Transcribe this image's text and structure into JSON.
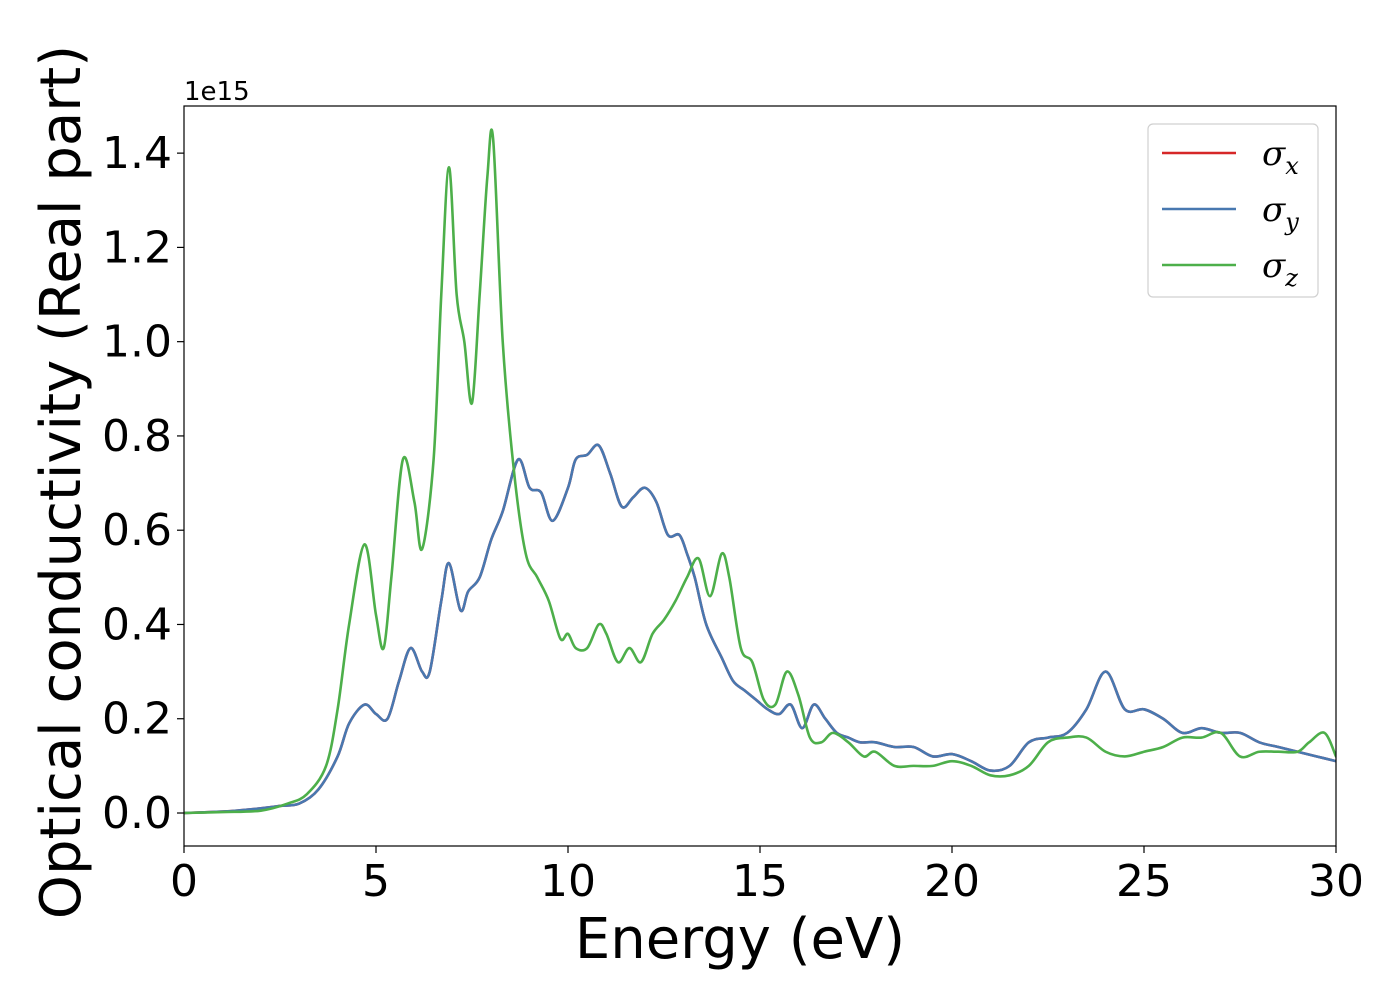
{
  "chart_data": {
    "type": "line",
    "xlabel": "Energy (eV)",
    "ylabel": "Optical conductivity (Real part)",
    "y_offset_label": "1e15",
    "xlim": [
      0,
      30
    ],
    "ylim": [
      -0.07,
      1.5
    ],
    "y_scale_factor": 1000000000000000.0,
    "xticks": [
      0,
      5,
      10,
      15,
      20,
      25,
      30
    ],
    "xtick_labels": [
      "0",
      "5",
      "10",
      "15",
      "20",
      "25",
      "30"
    ],
    "yticks": [
      0.0,
      0.2,
      0.4,
      0.6,
      0.8,
      1.0,
      1.2,
      1.4
    ],
    "ytick_labels": [
      "0.0",
      "0.2",
      "0.4",
      "0.6",
      "0.8",
      "1.0",
      "1.2",
      "1.4"
    ],
    "grid": false,
    "legend_position": "top-right",
    "series": [
      {
        "name": "σx",
        "symbol": "σ",
        "sub": "x",
        "color": "#d62728",
        "hidden_under": "σy",
        "x": [
          0,
          1,
          1.5,
          2,
          2.5,
          3,
          3.5,
          4,
          4.3,
          4.7,
          5.0,
          5.3,
          5.6,
          5.9,
          6.2,
          6.4,
          6.7,
          6.9,
          7.2,
          7.4,
          7.7,
          8.0,
          8.3,
          8.7,
          9.0,
          9.3,
          9.6,
          10.0,
          10.2,
          10.5,
          10.8,
          11.1,
          11.4,
          11.7,
          12.0,
          12.3,
          12.6,
          12.9,
          13.1,
          13.3,
          13.6,
          14.0,
          14.3,
          14.6,
          14.9,
          15.2,
          15.5,
          15.8,
          16.1,
          16.4,
          16.7,
          17.0,
          17.3,
          17.6,
          18.0,
          18.5,
          19.0,
          19.5,
          20.0,
          20.5,
          21.0,
          21.5,
          22.0,
          22.5,
          23.0,
          23.5,
          24.0,
          24.5,
          25.0,
          25.5,
          26.0,
          26.5,
          27.0,
          27.5,
          28.0,
          28.5,
          29.0,
          29.5,
          30.0
        ],
        "y": [
          0,
          0.003,
          0.006,
          0.01,
          0.015,
          0.02,
          0.05,
          0.12,
          0.19,
          0.23,
          0.21,
          0.2,
          0.28,
          0.35,
          0.3,
          0.3,
          0.45,
          0.53,
          0.43,
          0.47,
          0.5,
          0.58,
          0.64,
          0.75,
          0.69,
          0.68,
          0.62,
          0.69,
          0.75,
          0.76,
          0.78,
          0.72,
          0.65,
          0.67,
          0.69,
          0.66,
          0.59,
          0.59,
          0.55,
          0.5,
          0.4,
          0.33,
          0.28,
          0.26,
          0.24,
          0.22,
          0.21,
          0.23,
          0.18,
          0.23,
          0.2,
          0.17,
          0.16,
          0.15,
          0.15,
          0.14,
          0.14,
          0.12,
          0.125,
          0.11,
          0.09,
          0.1,
          0.15,
          0.16,
          0.17,
          0.22,
          0.3,
          0.22,
          0.22,
          0.2,
          0.17,
          0.18,
          0.17,
          0.17,
          0.15,
          0.14,
          0.13,
          0.12,
          0.11
        ]
      },
      {
        "name": "σy",
        "symbol": "σ",
        "sub": "y",
        "color": "#4878b0",
        "x": [
          0,
          1,
          1.5,
          2,
          2.5,
          3,
          3.5,
          4,
          4.3,
          4.7,
          5.0,
          5.3,
          5.6,
          5.9,
          6.2,
          6.4,
          6.7,
          6.9,
          7.2,
          7.4,
          7.7,
          8.0,
          8.3,
          8.7,
          9.0,
          9.3,
          9.6,
          10.0,
          10.2,
          10.5,
          10.8,
          11.1,
          11.4,
          11.7,
          12.0,
          12.3,
          12.6,
          12.9,
          13.1,
          13.3,
          13.6,
          14.0,
          14.3,
          14.6,
          14.9,
          15.2,
          15.5,
          15.8,
          16.1,
          16.4,
          16.7,
          17.0,
          17.3,
          17.6,
          18.0,
          18.5,
          19.0,
          19.5,
          20.0,
          20.5,
          21.0,
          21.5,
          22.0,
          22.5,
          23.0,
          23.5,
          24.0,
          24.5,
          25.0,
          25.5,
          26.0,
          26.5,
          27.0,
          27.5,
          28.0,
          28.5,
          29.0,
          29.5,
          30.0
        ],
        "y": [
          0,
          0.003,
          0.006,
          0.01,
          0.015,
          0.02,
          0.05,
          0.12,
          0.19,
          0.23,
          0.21,
          0.2,
          0.28,
          0.35,
          0.3,
          0.3,
          0.45,
          0.53,
          0.43,
          0.47,
          0.5,
          0.58,
          0.64,
          0.75,
          0.69,
          0.68,
          0.62,
          0.69,
          0.75,
          0.76,
          0.78,
          0.72,
          0.65,
          0.67,
          0.69,
          0.66,
          0.59,
          0.59,
          0.55,
          0.5,
          0.4,
          0.33,
          0.28,
          0.26,
          0.24,
          0.22,
          0.21,
          0.23,
          0.18,
          0.23,
          0.2,
          0.17,
          0.16,
          0.15,
          0.15,
          0.14,
          0.14,
          0.12,
          0.125,
          0.11,
          0.09,
          0.1,
          0.15,
          0.16,
          0.17,
          0.22,
          0.3,
          0.22,
          0.22,
          0.2,
          0.17,
          0.18,
          0.17,
          0.17,
          0.15,
          0.14,
          0.13,
          0.12,
          0.11
        ]
      },
      {
        "name": "σz",
        "symbol": "σ",
        "sub": "z",
        "color": "#4daf4a",
        "x": [
          0,
          1,
          2,
          2.7,
          3.2,
          3.7,
          4.0,
          4.3,
          4.7,
          5.0,
          5.2,
          5.4,
          5.7,
          6.0,
          6.2,
          6.5,
          6.7,
          6.9,
          7.1,
          7.3,
          7.5,
          7.7,
          7.9,
          8.05,
          8.3,
          8.6,
          8.9,
          9.2,
          9.5,
          9.8,
          10.0,
          10.2,
          10.5,
          10.8,
          11.0,
          11.3,
          11.6,
          11.9,
          12.2,
          12.5,
          12.8,
          13.1,
          13.4,
          13.7,
          14.0,
          14.2,
          14.5,
          14.8,
          15.1,
          15.4,
          15.7,
          16.0,
          16.3,
          16.6,
          16.9,
          17.3,
          17.7,
          18.0,
          18.5,
          19.0,
          19.5,
          20.0,
          20.5,
          21.0,
          21.5,
          22.0,
          22.5,
          23.0,
          23.5,
          24.0,
          24.5,
          25.0,
          25.5,
          26.0,
          26.5,
          27.0,
          27.5,
          28.0,
          28.5,
          29.0,
          29.3,
          29.7,
          30.0
        ],
        "y": [
          0,
          0.002,
          0.005,
          0.02,
          0.04,
          0.1,
          0.22,
          0.4,
          0.57,
          0.42,
          0.35,
          0.5,
          0.75,
          0.66,
          0.56,
          0.75,
          1.1,
          1.37,
          1.1,
          1.0,
          0.87,
          1.1,
          1.35,
          1.43,
          1.0,
          0.72,
          0.55,
          0.5,
          0.45,
          0.37,
          0.38,
          0.35,
          0.35,
          0.4,
          0.38,
          0.32,
          0.35,
          0.32,
          0.38,
          0.41,
          0.45,
          0.5,
          0.54,
          0.46,
          0.55,
          0.5,
          0.35,
          0.32,
          0.24,
          0.23,
          0.3,
          0.25,
          0.16,
          0.15,
          0.17,
          0.15,
          0.12,
          0.13,
          0.1,
          0.1,
          0.1,
          0.11,
          0.1,
          0.08,
          0.08,
          0.1,
          0.15,
          0.16,
          0.16,
          0.13,
          0.12,
          0.13,
          0.14,
          0.16,
          0.16,
          0.17,
          0.12,
          0.13,
          0.13,
          0.13,
          0.15,
          0.17,
          0.12
        ]
      }
    ]
  }
}
